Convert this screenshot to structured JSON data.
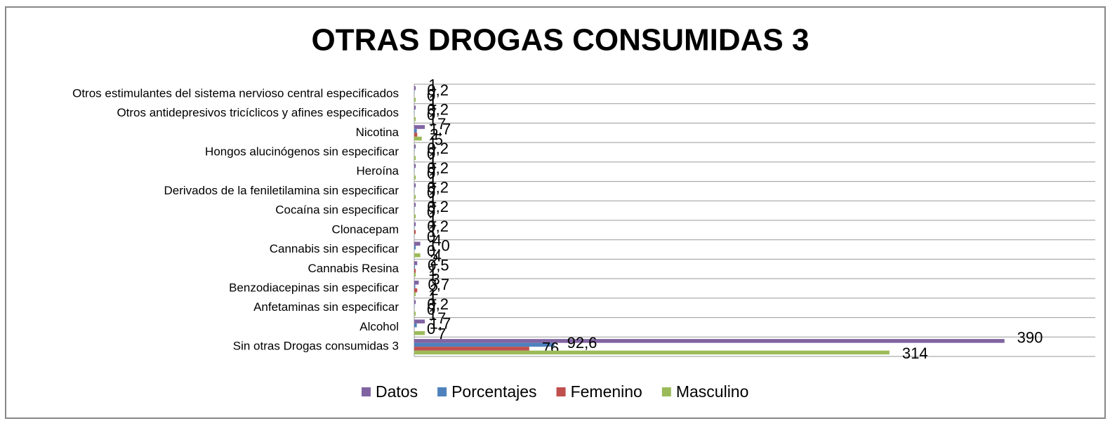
{
  "chart_data": {
    "type": "bar",
    "orientation": "horizontal",
    "title": "OTRAS DROGAS CONSUMIDAS 3",
    "categories": [
      "Otros estimulantes del sistema nervioso central especificados",
      "Otros antidepresivos tricíclicos y afines especificados",
      "Nicotina",
      "Hongos alucinógenos sin especificar",
      "Heroína",
      "Derivados de la feniletilamina sin especificar",
      "Cocaína sin especificar",
      "Clonacepam",
      "Cannabis sin especificar",
      "Cannabis Resina",
      "Benzodiacepinas sin especificar",
      "Anfetaminas sin especificar",
      "Alcohol",
      "Sin otras Drogas consumidas 3"
    ],
    "series": [
      {
        "name": "Datos",
        "color": "#8064a2",
        "values": [
          1,
          1,
          7,
          1,
          1,
          1,
          1,
          1,
          4,
          2,
          3,
          1,
          7,
          390
        ]
      },
      {
        "name": "Porcentajes",
        "color": "#4f81bd",
        "values": [
          0.2,
          0.2,
          1.7,
          0.2,
          0.2,
          0.2,
          0.2,
          0.2,
          1.0,
          0.5,
          0.7,
          0.2,
          1.7,
          92.6
        ],
        "value_labels": [
          "0,2",
          "0,2",
          "1,7",
          "0,2",
          "0,2",
          "0,2",
          "0,2",
          "0,2",
          "1,0",
          "0,5",
          "0,7",
          "0,2",
          "1,7",
          "92,6"
        ]
      },
      {
        "name": "Femenino",
        "color": "#c0504d",
        "values": [
          0,
          0,
          2,
          0,
          0,
          0,
          0,
          1,
          0,
          1,
          2,
          0,
          0,
          76
        ]
      },
      {
        "name": "Masculino",
        "color": "#9bbb59",
        "values": [
          1,
          1,
          5,
          1,
          1,
          1,
          1,
          0,
          4,
          1,
          1,
          1,
          7,
          314
        ]
      }
    ],
    "xlim": [
      0,
      450
    ],
    "grid": true,
    "legend": "bottom"
  }
}
